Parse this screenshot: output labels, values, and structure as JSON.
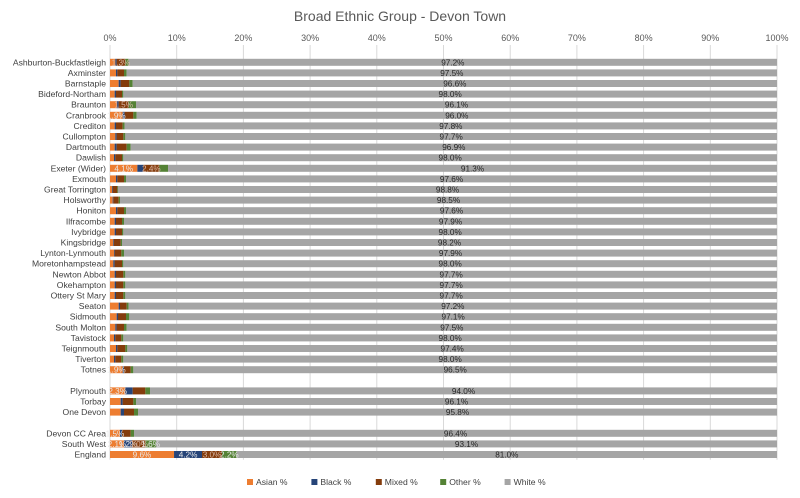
{
  "chart_data": {
    "type": "bar",
    "orientation": "horizontal",
    "stacked": "100%",
    "title": "Broad Ethnic Group - Devon Town",
    "xlabel": "",
    "ylabel": "",
    "xlim": [
      0,
      100
    ],
    "x_ticks": [
      "0%",
      "10%",
      "20%",
      "30%",
      "40%",
      "50%",
      "60%",
      "70%",
      "80%",
      "90%",
      "100%"
    ],
    "grid": "vertical gridlines",
    "legend_position": "bottom",
    "series": [
      {
        "name": "Asian %",
        "color": "#ED7D31"
      },
      {
        "name": "Black %",
        "color": "#264478"
      },
      {
        "name": "Mixed %",
        "color": "#843C0C"
      },
      {
        "name": "Other %",
        "color": "#548235"
      },
      {
        "name": "White %",
        "color": "#A5A5A5"
      }
    ],
    "categories": [
      {
        "label": "Ashburton-Buckfastleigh",
        "asian": 0.8,
        "black": 0.2,
        "mixed": 1.3,
        "other": 0.5,
        "white": 97.2,
        "labels": {
          "asian": "",
          "black": "",
          "mixed": "1.3%",
          "other": "",
          "white": "97.2%"
        }
      },
      {
        "label": "Axminster",
        "asian": 0.9,
        "black": 0.2,
        "mixed": 1.0,
        "other": 0.4,
        "white": 97.5,
        "labels": {
          "asian": "",
          "black": "",
          "mixed": "",
          "other": "",
          "white": "97.5%"
        }
      },
      {
        "label": "Barnstaple",
        "asian": 1.3,
        "black": 0.3,
        "mixed": 1.3,
        "other": 0.5,
        "white": 96.6,
        "labels": {
          "asian": "",
          "black": "",
          "mixed": "",
          "other": "",
          "white": "96.6%"
        }
      },
      {
        "label": "Bideford-Northam",
        "asian": 0.7,
        "black": 0.2,
        "mixed": 0.9,
        "other": 0.2,
        "white": 98.0,
        "labels": {
          "asian": "",
          "black": "",
          "mixed": "",
          "other": "",
          "white": "98.0%"
        }
      },
      {
        "label": "Braunton",
        "asian": 1.0,
        "black": 0.3,
        "mixed": 1.5,
        "other": 1.1,
        "white": 96.1,
        "labels": {
          "asian": "",
          "black": "",
          "mixed": "1.5%",
          "other": "",
          "white": "96.1%"
        }
      },
      {
        "label": "Cranbrook",
        "asian": 1.9,
        "black": 0.3,
        "mixed": 1.3,
        "other": 0.5,
        "white": 96.0,
        "labels": {
          "asian": "1.9%",
          "black": "",
          "mixed": "",
          "other": "",
          "white": "96.0%"
        }
      },
      {
        "label": "Crediton",
        "asian": 0.7,
        "black": 0.2,
        "mixed": 1.0,
        "other": 0.3,
        "white": 97.8,
        "labels": {
          "asian": "",
          "black": "",
          "mixed": "",
          "other": "",
          "white": "97.8%"
        }
      },
      {
        "label": "Cullompton",
        "asian": 0.8,
        "black": 0.2,
        "mixed": 1.0,
        "other": 0.3,
        "white": 97.7,
        "labels": {
          "asian": "",
          "black": "",
          "mixed": "",
          "other": "",
          "white": "97.7%"
        }
      },
      {
        "label": "Dartmouth",
        "asian": 0.7,
        "black": 0.3,
        "mixed": 1.5,
        "other": 0.6,
        "white": 96.9,
        "labels": {
          "asian": "",
          "black": "",
          "mixed": "",
          "other": "",
          "white": "96.9%"
        }
      },
      {
        "label": "Dawlish",
        "asian": 0.6,
        "black": 0.2,
        "mixed": 1.0,
        "other": 0.2,
        "white": 98.0,
        "labels": {
          "asian": "",
          "black": "",
          "mixed": "",
          "other": "",
          "white": "98.0%"
        }
      },
      {
        "label": "Exeter (Wider)",
        "asian": 4.1,
        "black": 0.9,
        "mixed": 2.4,
        "other": 1.3,
        "white": 91.3,
        "labels": {
          "asian": "4.1%",
          "black": "",
          "mixed": "2.4%",
          "other": "",
          "white": "91.3%"
        }
      },
      {
        "label": "Exmouth",
        "asian": 0.9,
        "black": 0.2,
        "mixed": 1.0,
        "other": 0.3,
        "white": 97.6,
        "labels": {
          "asian": "",
          "black": "",
          "mixed": "",
          "other": "",
          "white": "97.6%"
        }
      },
      {
        "label": "Great Torrington",
        "asian": 0.3,
        "black": 0.1,
        "mixed": 0.7,
        "other": 0.1,
        "white": 98.8,
        "labels": {
          "asian": "",
          "black": "",
          "mixed": "",
          "other": "",
          "white": "98.8%"
        }
      },
      {
        "label": "Holsworthy",
        "asian": 0.4,
        "black": 0.1,
        "mixed": 0.8,
        "other": 0.2,
        "white": 98.5,
        "labels": {
          "asian": "",
          "black": "",
          "mixed": "",
          "other": "",
          "white": "98.5%"
        }
      },
      {
        "label": "Honiton",
        "asian": 0.9,
        "black": 0.2,
        "mixed": 1.0,
        "other": 0.3,
        "white": 97.6,
        "labels": {
          "asian": "",
          "black": "",
          "mixed": "",
          "other": "",
          "white": "97.6%"
        }
      },
      {
        "label": "Ilfracombe",
        "asian": 0.7,
        "black": 0.2,
        "mixed": 0.9,
        "other": 0.3,
        "white": 97.9,
        "labels": {
          "asian": "",
          "black": "",
          "mixed": "",
          "other": "",
          "white": "97.9%"
        }
      },
      {
        "label": "Ivybridge",
        "asian": 0.7,
        "black": 0.2,
        "mixed": 0.9,
        "other": 0.2,
        "white": 98.0,
        "labels": {
          "asian": "",
          "black": "",
          "mixed": "",
          "other": "",
          "white": "98.0%"
        }
      },
      {
        "label": "Kingsbridge",
        "asian": 0.5,
        "black": 0.1,
        "mixed": 1.0,
        "other": 0.2,
        "white": 98.2,
        "labels": {
          "asian": "",
          "black": "",
          "mixed": "",
          "other": "",
          "white": "98.2%"
        }
      },
      {
        "label": "Lynton-Lynmouth",
        "asian": 0.6,
        "black": 0.1,
        "mixed": 1.0,
        "other": 0.4,
        "white": 97.9,
        "labels": {
          "asian": "",
          "black": "",
          "mixed": "",
          "other": "",
          "white": "97.9%"
        }
      },
      {
        "label": "Moretonhampstead",
        "asian": 0.5,
        "black": 0.2,
        "mixed": 1.1,
        "other": 0.2,
        "white": 98.0,
        "labels": {
          "asian": "",
          "black": "",
          "mixed": "",
          "other": "",
          "white": "98.0%"
        }
      },
      {
        "label": "Newton Abbot",
        "asian": 0.7,
        "black": 0.2,
        "mixed": 1.1,
        "other": 0.3,
        "white": 97.7,
        "labels": {
          "asian": "",
          "black": "",
          "mixed": "",
          "other": "",
          "white": "97.7%"
        }
      },
      {
        "label": "Okehampton",
        "asian": 0.7,
        "black": 0.2,
        "mixed": 1.1,
        "other": 0.3,
        "white": 97.7,
        "labels": {
          "asian": "",
          "black": "",
          "mixed": "",
          "other": "",
          "white": "97.7%"
        }
      },
      {
        "label": "Ottery St Mary",
        "asian": 0.7,
        "black": 0.2,
        "mixed": 1.1,
        "other": 0.3,
        "white": 97.7,
        "labels": {
          "asian": "",
          "black": "",
          "mixed": "",
          "other": "",
          "white": "97.7%"
        }
      },
      {
        "label": "Seaton",
        "asian": 1.3,
        "black": 0.2,
        "mixed": 1.0,
        "other": 0.3,
        "white": 97.2,
        "labels": {
          "asian": "",
          "black": "",
          "mixed": "",
          "other": "",
          "white": "97.2%"
        }
      },
      {
        "label": "Sidmouth",
        "asian": 1.0,
        "black": 0.2,
        "mixed": 1.2,
        "other": 0.5,
        "white": 97.1,
        "labels": {
          "asian": "",
          "black": "",
          "mixed": "",
          "other": "",
          "white": "97.1%"
        }
      },
      {
        "label": "South Molton",
        "asian": 0.8,
        "black": 0.2,
        "mixed": 1.1,
        "other": 0.4,
        "white": 97.5,
        "labels": {
          "asian": "",
          "black": "",
          "mixed": "",
          "other": "",
          "white": "97.5%"
        }
      },
      {
        "label": "Tavistock",
        "asian": 0.6,
        "black": 0.2,
        "mixed": 0.9,
        "other": 0.3,
        "white": 98.0,
        "labels": {
          "asian": "",
          "black": "",
          "mixed": "",
          "other": "",
          "white": "98.0%"
        }
      },
      {
        "label": "Teignmouth",
        "asian": 0.9,
        "black": 0.2,
        "mixed": 1.2,
        "other": 0.3,
        "white": 97.4,
        "labels": {
          "asian": "",
          "black": "",
          "mixed": "",
          "other": "",
          "white": "97.4%"
        }
      },
      {
        "label": "Tiverton",
        "asian": 0.6,
        "black": 0.2,
        "mixed": 0.9,
        "other": 0.3,
        "white": 98.0,
        "labels": {
          "asian": "",
          "black": "",
          "mixed": "",
          "other": "",
          "white": "98.0%"
        }
      },
      {
        "label": "Totnes",
        "asian": 1.9,
        "black": 0.2,
        "mixed": 1.0,
        "other": 0.4,
        "white": 96.5,
        "labels": {
          "asian": "1.9%",
          "black": "",
          "mixed": "",
          "other": "",
          "white": "96.5%"
        }
      },
      {
        "label": "",
        "gap": true
      },
      {
        "label": "Plymouth",
        "asian": 2.3,
        "black": 1.1,
        "mixed": 1.9,
        "other": 0.7,
        "white": 94.0,
        "labels": {
          "asian": "2.3%",
          "black": "",
          "mixed": "",
          "other": "",
          "white": "94.0%"
        }
      },
      {
        "label": "Torbay",
        "asian": 1.6,
        "black": 0.3,
        "mixed": 1.6,
        "other": 0.4,
        "white": 96.1,
        "labels": {
          "asian": "",
          "black": "",
          "mixed": "",
          "other": "",
          "white": "96.1%"
        }
      },
      {
        "label": "One Devon",
        "asian": 1.6,
        "black": 0.5,
        "mixed": 1.5,
        "other": 0.6,
        "white": 95.8,
        "labels": {
          "asian": "",
          "black": "",
          "mixed": "",
          "other": "",
          "white": "95.8%"
        }
      },
      {
        "label": "",
        "gap": true
      },
      {
        "label": "Devon CC Area",
        "asian": 1.5,
        "black": 0.3,
        "mixed": 1.3,
        "other": 0.5,
        "white": 96.4,
        "labels": {
          "asian": "1.5%",
          "black": "",
          "mixed": "",
          "other": "",
          "white": "96.4%"
        }
      },
      {
        "label": "South West",
        "asian": 2.1,
        "black": 1.2,
        "mixed": 2.0,
        "other": 1.6,
        "white": 93.1,
        "labels": {
          "asian": "2.1%",
          "black": "1.2%",
          "mixed": "2.0%",
          "other": "1.6%",
          "white": "93.1%"
        }
      },
      {
        "label": "England",
        "asian": 9.6,
        "black": 4.2,
        "mixed": 3.0,
        "other": 2.2,
        "white": 81.0,
        "labels": {
          "asian": "9.6%",
          "black": "4.2%",
          "mixed": "3.0%",
          "other": "2.2%",
          "white": "81.0%"
        }
      }
    ]
  }
}
